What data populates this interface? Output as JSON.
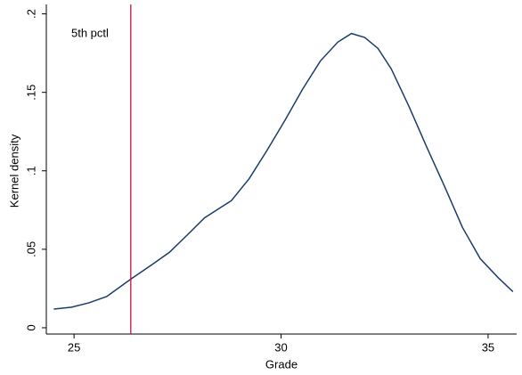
{
  "chart_data": {
    "type": "line",
    "x_label": "Grade",
    "y_label": "Kernel density",
    "x": [
      24.51,
      24.94,
      25.36,
      25.79,
      26.37,
      26.87,
      27.3,
      27.73,
      28.15,
      28.8,
      29.23,
      29.66,
      30.09,
      30.52,
      30.95,
      31.37,
      31.7,
      32.02,
      32.34,
      32.66,
      33.09,
      33.52,
      33.95,
      34.38,
      34.81,
      35.24,
      35.6
    ],
    "series": [
      {
        "color": "#1a3d6b",
        "values": [
          0.0119,
          0.0131,
          0.0159,
          0.0199,
          0.031,
          0.04,
          0.048,
          0.059,
          0.07,
          0.081,
          0.095,
          0.113,
          0.132,
          0.152,
          0.17,
          0.182,
          0.1875,
          0.185,
          0.178,
          0.165,
          0.141,
          0.115,
          0.09,
          0.064,
          0.044,
          0.032,
          0.023
        ]
      }
    ],
    "xlim": [
      24.33,
      35.69
    ],
    "xticks": [
      25,
      30,
      35
    ],
    "ylim": [
      -0.004,
      0.206
    ],
    "yticks": [
      0,
      {
        "value": 0.05,
        "label": ".05"
      },
      {
        "value": 0.1,
        "label": ".1"
      },
      {
        "value": 0.15,
        "label": ".15"
      },
      {
        "value": 0.2,
        "label": ".2"
      }
    ],
    "vline": {
      "x": 26.37,
      "label": "5th pctl",
      "color": "#c0143c"
    }
  }
}
